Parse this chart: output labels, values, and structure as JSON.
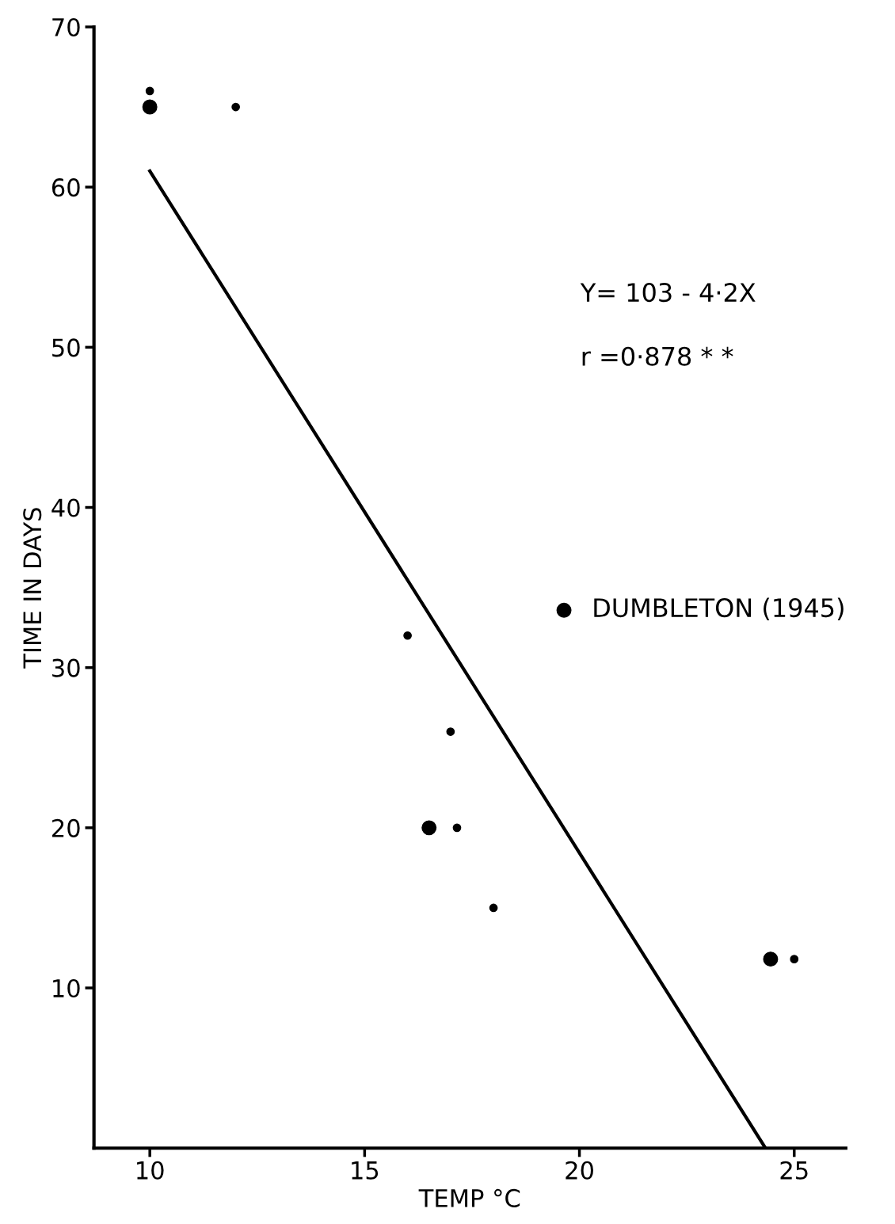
{
  "chart_data": {
    "type": "scatter",
    "xlabel": "TEMP °C",
    "ylabel": "TIME IN DAYS",
    "xlim": [
      8.7,
      26.2
    ],
    "ylim": [
      0,
      70
    ],
    "xticks": [
      10,
      15,
      20,
      25
    ],
    "yticks": [
      10,
      20,
      30,
      40,
      50,
      60,
      70
    ],
    "series": [
      {
        "color": "#000000",
        "marker": "circle",
        "x": [
          10,
          12,
          16,
          17,
          17.15,
          18,
          25
        ],
        "values": [
          66,
          65,
          32,
          26,
          20,
          15,
          11.8
        ]
      },
      {
        "name": "DUMBLETON (1945)",
        "color": "#000000",
        "marker": "circle",
        "x": [
          10,
          16.5,
          24.45
        ],
        "values": [
          65,
          20,
          11.8
        ]
      },
      {
        "type": "line",
        "color": "#000000",
        "marker": "none",
        "line_style": "solid",
        "x": [
          10,
          24.33
        ],
        "values": [
          61,
          0
        ]
      }
    ],
    "annotations": [
      "Y= 103 - 4·2X",
      "r =0·878 * *"
    ],
    "legend": "right",
    "grid": false
  }
}
